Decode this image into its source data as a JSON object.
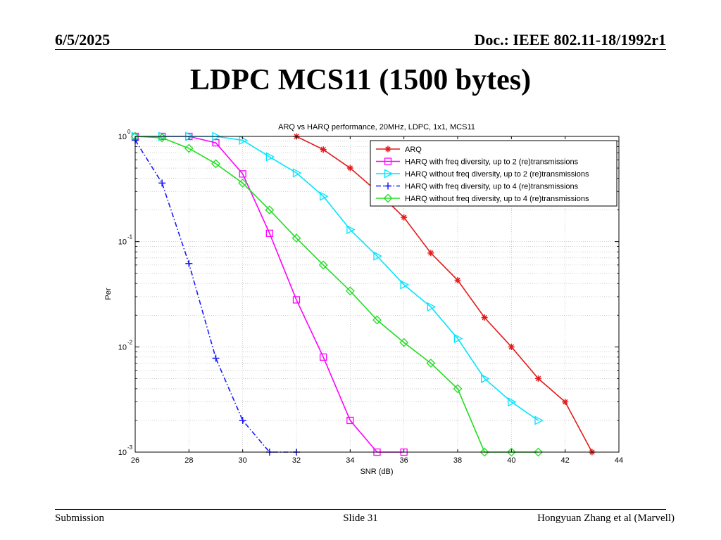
{
  "header": {
    "date": "6/5/2025",
    "doc": "Doc.: IEEE 802.11-18/1992r1"
  },
  "slide_title": "LDPC MCS11 (1500 bytes)",
  "footer": {
    "left": "Submission",
    "center": "Slide 31",
    "right": "Hongyuan Zhang et al (Marvell)"
  },
  "chart_data": {
    "type": "line",
    "title": "ARQ vs HARQ performance, 20MHz, LDPC, 1x1, MCS11",
    "xlabel": "SNR (dB)",
    "ylabel": "Per",
    "xlim": [
      26,
      44
    ],
    "ylim": [
      0.001,
      1
    ],
    "yscale": "log",
    "grid": true,
    "legend_position": "top-right",
    "x_ticks": [
      26,
      28,
      30,
      32,
      34,
      36,
      38,
      40,
      42,
      44
    ],
    "x_tick_labels": [
      "26",
      "28",
      "30",
      "32",
      "34",
      "36",
      "38",
      "40",
      "42",
      "44"
    ],
    "y_ticks": [
      1,
      0.1,
      0.01,
      0.001
    ],
    "y_tick_labels": [
      {
        "base": "10",
        "exp": "0"
      },
      {
        "base": "10",
        "exp": "-1"
      },
      {
        "base": "10",
        "exp": "-2"
      },
      {
        "base": "10",
        "exp": "-3"
      }
    ],
    "series": [
      {
        "name": "ARQ",
        "color": "#e41a1a",
        "line": "solid",
        "marker": "star",
        "x": [
          32,
          33,
          34,
          35,
          36,
          37,
          38,
          39,
          40,
          41,
          42,
          43
        ],
        "y": [
          1.0,
          0.75,
          0.5,
          0.3,
          0.17,
          0.078,
          0.043,
          0.019,
          0.01,
          0.005,
          0.003,
          0.001
        ]
      },
      {
        "name": "HARQ with freq diversity, up to 2 (re)transmissions",
        "color": "#ff00ff",
        "line": "solid",
        "marker": "square",
        "x": [
          26,
          27,
          28,
          29,
          30,
          31,
          32,
          33,
          34,
          35,
          36
        ],
        "y": [
          1.0,
          1.0,
          1.0,
          0.87,
          0.44,
          0.12,
          0.028,
          0.008,
          0.002,
          0.001,
          0.001
        ]
      },
      {
        "name": "HARQ without freq diversity, up to 2 (re)transmissions",
        "color": "#00e5ff",
        "line": "solid",
        "marker": "triangle-right",
        "x": [
          26,
          27,
          28,
          29,
          30,
          31,
          32,
          33,
          34,
          35,
          36,
          37,
          38,
          39,
          40,
          41
        ],
        "y": [
          1.0,
          1.0,
          1.0,
          1.0,
          0.92,
          0.64,
          0.45,
          0.27,
          0.13,
          0.073,
          0.039,
          0.024,
          0.012,
          0.005,
          0.003,
          0.002
        ]
      },
      {
        "name": "HARQ with freq diversity, up to 4 (re)transmissions",
        "color": "#1a1aff",
        "line": "dashdot",
        "marker": "plus",
        "x": [
          26,
          27,
          28,
          29,
          30,
          31,
          32
        ],
        "y": [
          0.92,
          0.36,
          0.062,
          0.0078,
          0.002,
          0.001,
          0.001
        ]
      },
      {
        "name": "HARQ without freq diversity, up to 4 (re)transmissions",
        "color": "#22dd22",
        "line": "solid",
        "marker": "diamond",
        "x": [
          26,
          27,
          28,
          29,
          30,
          31,
          32,
          33,
          34,
          35,
          36,
          37,
          38,
          39,
          40,
          41
        ],
        "y": [
          1.0,
          0.97,
          0.77,
          0.55,
          0.36,
          0.2,
          0.108,
          0.06,
          0.034,
          0.018,
          0.011,
          0.007,
          0.004,
          0.001,
          0.001,
          0.001
        ]
      }
    ]
  }
}
